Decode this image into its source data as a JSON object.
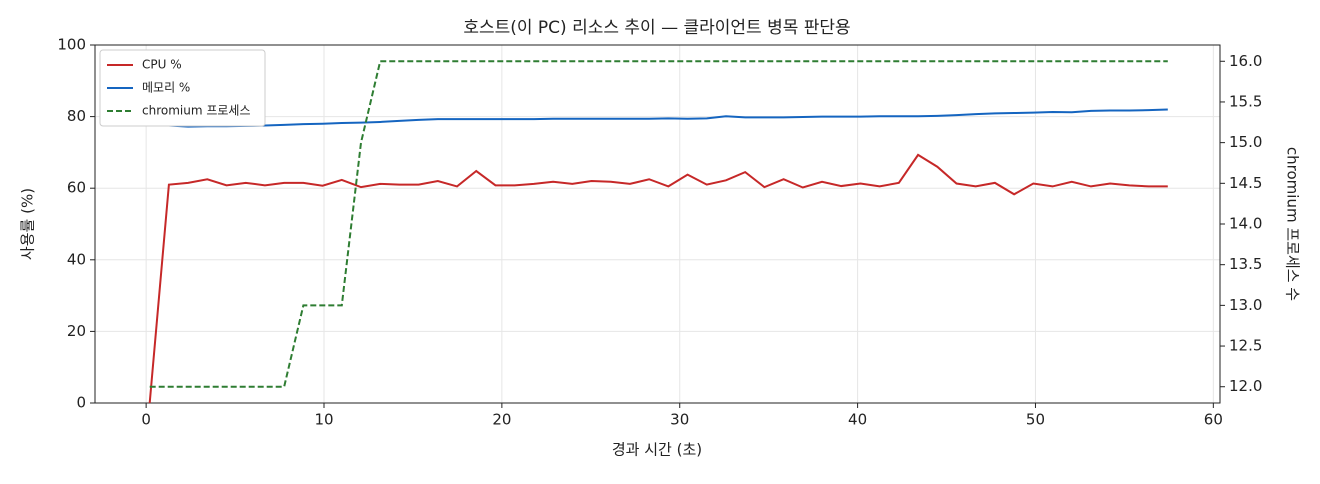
{
  "chart_data": {
    "type": "line",
    "title": "호스트(이 PC) 리소스 추이 — 클라이언트 병목 판단용",
    "xlabel": "경과 시간 (초)",
    "ylabel": "사용률 (%)",
    "y2label": "chromium 프로세스 수",
    "x": [
      0.2,
      1.28,
      2.36,
      3.44,
      4.52,
      5.6,
      6.68,
      7.76,
      8.84,
      9.92,
      11,
      12.08,
      13.16,
      14.24,
      15.32,
      16.4,
      17.48,
      18.56,
      19.64,
      20.72,
      21.8,
      22.88,
      23.96,
      25.04,
      26.12,
      27.2,
      28.28,
      29.36,
      30.44,
      31.52,
      32.6,
      33.68,
      34.76,
      35.84,
      36.92,
      38,
      39.08,
      40.16,
      41.24,
      42.32,
      43.4,
      44.48,
      45.56,
      46.64,
      47.72,
      48.8,
      49.88,
      50.96,
      52.04,
      53.12,
      54.2,
      55.28,
      56.36,
      57.44
    ],
    "series": [
      {
        "name": "CPU %",
        "color": "#c62828",
        "linestyle": "solid",
        "values": [
          0,
          61,
          61.5,
          62.5,
          60.8,
          61.5,
          60.8,
          61.5,
          61.5,
          60.7,
          62.3,
          60.3,
          61.2,
          61,
          61,
          62,
          60.5,
          64.8,
          60.8,
          60.8,
          61.2,
          61.8,
          61.2,
          62,
          61.8,
          61.2,
          62.5,
          60.5,
          63.8,
          61,
          62.2,
          64.5,
          60.3,
          62.5,
          60.2,
          61.8,
          60.6,
          61.3,
          60.5,
          61.5,
          69.3,
          66,
          61.3,
          60.5,
          61.5,
          58.3,
          61.3,
          60.5,
          61.8,
          60.5,
          61.3,
          60.8,
          60.5,
          60.5
        ]
      },
      {
        "name": "메모리 %",
        "color": "#1565c0",
        "linestyle": "solid",
        "values": [
          77.5,
          77.5,
          77.2,
          77.3,
          77.3,
          77.4,
          77.5,
          77.7,
          77.9,
          78,
          78.2,
          78.3,
          78.5,
          78.8,
          79.1,
          79.3,
          79.3,
          79.3,
          79.3,
          79.3,
          79.3,
          79.4,
          79.4,
          79.4,
          79.4,
          79.4,
          79.4,
          79.5,
          79.4,
          79.5,
          80.1,
          79.8,
          79.8,
          79.8,
          79.9,
          80,
          80,
          80,
          80.1,
          80.1,
          80.1,
          80.2,
          80.4,
          80.7,
          80.9,
          81,
          81.1,
          81.3,
          81.2,
          81.6,
          81.7,
          81.7,
          81.8,
          82
        ]
      },
      {
        "name": "chromium 프로세스",
        "color": "#2e7d32",
        "linestyle": "dashed",
        "axis": "y2",
        "values": [
          12,
          12,
          12,
          12,
          12,
          12,
          12,
          12,
          13,
          13,
          13,
          15,
          16,
          16,
          16,
          16,
          16,
          16,
          16,
          16,
          16,
          16,
          16,
          16,
          16,
          16,
          16,
          16,
          16,
          16,
          16,
          16,
          16,
          16,
          16,
          16,
          16,
          16,
          16,
          16,
          16,
          16,
          16,
          16,
          16,
          16,
          16,
          16,
          16,
          16,
          16,
          16,
          16,
          16
        ]
      }
    ],
    "xlim": [
      -2.875,
      60.375
    ],
    "xticks": [
      0,
      10,
      20,
      30,
      40,
      50,
      60
    ],
    "ylim": [
      0,
      100
    ],
    "yticks": [
      0,
      20,
      40,
      60,
      80,
      100
    ],
    "y2lim": [
      11.8,
      16.2
    ],
    "y2ticks": [
      {
        "value": 12,
        "label": "12.0"
      },
      12.5,
      {
        "value": 13,
        "label": "13.0"
      },
      13.5,
      {
        "value": 14,
        "label": "14.0"
      },
      14.5,
      {
        "value": 15,
        "label": "15.0"
      },
      15.5,
      {
        "value": 16,
        "label": "16.0"
      }
    ],
    "grid": true,
    "legend": "upper left"
  }
}
